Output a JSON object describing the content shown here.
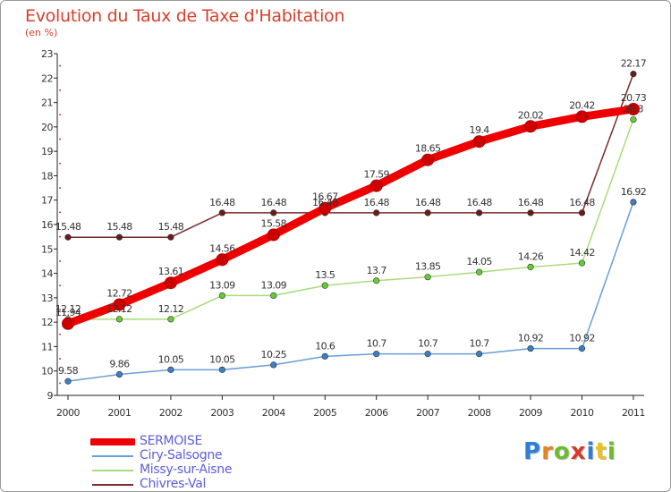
{
  "title": "Evolution du Taux de Taxe d'Habitation",
  "subtitle": "(en %)",
  "brand": "Proxiti",
  "brand_letters": [
    {
      "char": "P",
      "color": "#2d7fd6"
    },
    {
      "char": "r",
      "color": "#e8821e"
    },
    {
      "char": "o",
      "color": "#6dbb2e"
    },
    {
      "char": "x",
      "color": "#d63a2b"
    },
    {
      "char": "i",
      "color": "#2d7fd6"
    },
    {
      "char": "t",
      "color": "#e8c21e"
    },
    {
      "char": "i",
      "color": "#6dbb2e"
    }
  ],
  "chart_data": {
    "type": "line",
    "title": "Evolution du Taux de Taxe d'Habitation",
    "subtitle": "(en %)",
    "xlabel": "",
    "ylabel": "",
    "x": [
      "2000",
      "2001",
      "2002",
      "2003",
      "2004",
      "2005",
      "2006",
      "2007",
      "2008",
      "2009",
      "2010",
      "2011"
    ],
    "ylim": [
      9,
      23
    ],
    "yticks": [
      9,
      10,
      11,
      12,
      13,
      14,
      15,
      16,
      17,
      18,
      19,
      20,
      21,
      22,
      23
    ],
    "grid": false,
    "legend_position": "bottom-left",
    "series": [
      {
        "name": "SERMOISE",
        "color": "#ee0000",
        "marker_color": "#cc0000",
        "values": [
          11.94,
          12.72,
          13.61,
          14.56,
          15.58,
          16.67,
          17.59,
          18.65,
          19.4,
          20.02,
          20.42,
          20.73
        ]
      },
      {
        "name": "Ciry-Salsogne",
        "color": "#6a9ed4",
        "marker_color": "#3b7fc4",
        "values": [
          9.58,
          9.86,
          10.05,
          10.05,
          10.25,
          10.6,
          10.7,
          10.7,
          10.7,
          10.92,
          10.92,
          16.92
        ]
      },
      {
        "name": "Missy-sur-Aisne",
        "color": "#a8dc7a",
        "marker_color": "#66cc33",
        "values": [
          12.12,
          12.12,
          12.12,
          13.09,
          13.09,
          13.5,
          13.7,
          13.85,
          14.05,
          14.26,
          14.42,
          20.3
        ]
      },
      {
        "name": "Chivres-Val",
        "color": "#7a2a2a",
        "marker_color": "#6b1a1a",
        "values": [
          15.48,
          15.48,
          15.48,
          16.48,
          16.48,
          16.48,
          16.48,
          16.48,
          16.48,
          16.48,
          16.48,
          22.17
        ]
      }
    ],
    "data_labels": [
      [
        "11.94",
        "12.72",
        "13.61",
        "14.56",
        "15.58",
        "16.67",
        "17.59",
        "18.65",
        "19.4",
        "20.02",
        "20.42",
        "20.73"
      ],
      [
        "9.58",
        "9.86",
        "10.05",
        "10.05",
        "10.25",
        "10.6",
        "10.7",
        "10.7",
        "10.7",
        "10.92",
        "10.92",
        "16.92"
      ],
      [
        "12.12",
        "12.12",
        "12.12",
        "13.09",
        "13.09",
        "13.5",
        "13.7",
        "13.85",
        "14.05",
        "14.26",
        "14.42",
        "20.3"
      ],
      [
        "15.48",
        "15.48",
        "15.48",
        "16.48",
        "16.48",
        "16.48",
        "16.48",
        "16.48",
        "16.48",
        "16.48",
        "16.48",
        "22.17"
      ]
    ]
  }
}
